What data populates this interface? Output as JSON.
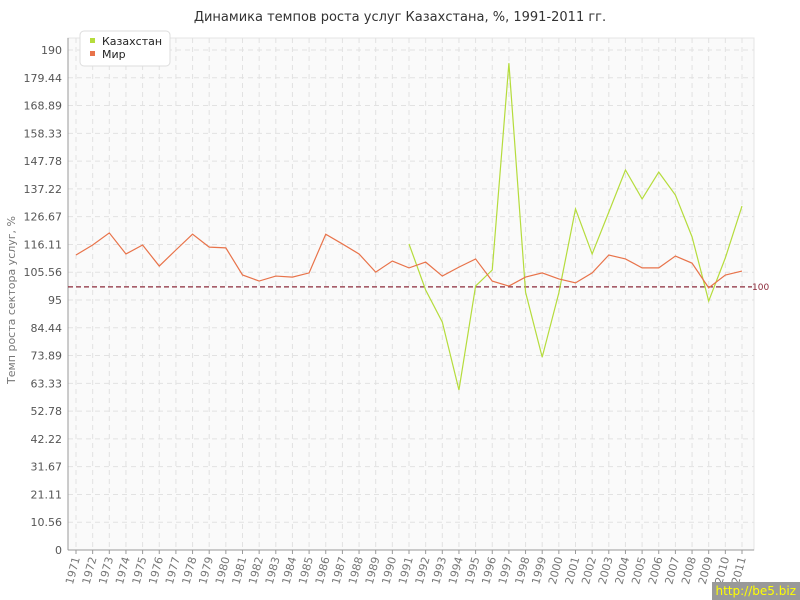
{
  "chart_data": {
    "type": "line",
    "title": "Динамика темпов роста услуг Казахстана, %, 1991-2011 гг.",
    "xlabel": "",
    "ylabel": "Темп роста сектора услуг, %",
    "ylim": [
      0,
      190
    ],
    "yticks": [
      "0",
      "10.56",
      "21.11",
      "31.67",
      "42.22",
      "52.78",
      "63.33",
      "73.89",
      "84.44",
      "95",
      "105.56",
      "116.11",
      "126.67",
      "137.22",
      "147.78",
      "158.33",
      "168.89",
      "179.44",
      "190"
    ],
    "x": [
      1971,
      1972,
      1973,
      1974,
      1975,
      1976,
      1977,
      1978,
      1979,
      1980,
      1981,
      1982,
      1983,
      1984,
      1985,
      1986,
      1987,
      1988,
      1989,
      1990,
      1991,
      1992,
      1993,
      1994,
      1995,
      1996,
      1997,
      1998,
      1999,
      2000,
      2001,
      2002,
      2003,
      2004,
      2005,
      2006,
      2007,
      2008,
      2009,
      2010,
      2011
    ],
    "grid": true,
    "legend_position": "top-left",
    "reference_line": {
      "value": 100,
      "label": "100",
      "color": "#8b2a3a"
    },
    "series": [
      {
        "name": "Казахстан",
        "color": "#b5dc3c",
        "values": [
          null,
          null,
          null,
          null,
          null,
          null,
          null,
          null,
          null,
          null,
          null,
          null,
          null,
          null,
          null,
          null,
          null,
          null,
          null,
          null,
          116.3,
          98.8,
          86.6,
          60.8,
          100.3,
          106.4,
          185,
          98,
          73.3,
          97.7,
          129.6,
          112.5,
          128.4,
          144.4,
          133.4,
          143.6,
          134.9,
          119,
          94.6,
          111,
          130.7
        ]
      },
      {
        "name": "Мир",
        "color": "#e8734a",
        "values": [
          112.1,
          115.9,
          120.5,
          112.5,
          115.9,
          107.9,
          114,
          120,
          115.1,
          114.8,
          104.5,
          102.2,
          104.1,
          103.7,
          105.3,
          120,
          116.3,
          112.5,
          105.6,
          109.8,
          107.2,
          109.4,
          104.1,
          107.5,
          110.6,
          102.2,
          100.3,
          103.7,
          105.3,
          103,
          101.5,
          105.3,
          112.1,
          110.6,
          107.2,
          107.2,
          111.7,
          109,
          99.6,
          104.5,
          106
        ]
      }
    ]
  },
  "watermark": "http://be5.biz"
}
